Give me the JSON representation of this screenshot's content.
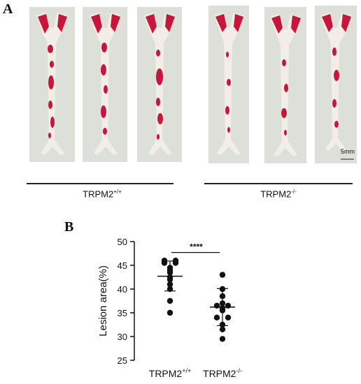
{
  "panel_a": {
    "letter": "A",
    "groups": [
      {
        "label_main": "TRPM2",
        "label_sup": "+/+"
      },
      {
        "label_main": "TRPM2",
        "label_sup": "-/-"
      }
    ],
    "scale_bar": "5mm"
  },
  "panel_b": {
    "letter": "B"
  },
  "chart_data": {
    "type": "scatter",
    "ylabel": "Lesion area(%)",
    "ylim": [
      25,
      50
    ],
    "yticks": [
      25,
      30,
      35,
      40,
      45,
      50
    ],
    "categories": [
      {
        "main": "TRPM2",
        "sup": "+/+"
      },
      {
        "main": "TRPM2",
        "sup": "-/-"
      }
    ],
    "significance": "****",
    "series": [
      {
        "values": [
          46,
          46,
          45.5,
          45.5,
          44.5,
          44,
          43.5,
          42.5,
          42,
          41,
          40,
          37.5,
          35
        ],
        "mean": 42.7,
        "sd_low": 39.6,
        "sd_high": 45.9
      },
      {
        "values": [
          43,
          40,
          38.5,
          37,
          36.5,
          36.5,
          36,
          35.5,
          34,
          34,
          32.5,
          31.5,
          29.5
        ],
        "mean": 36.2,
        "sd_low": 32.3,
        "sd_high": 40.1
      }
    ]
  }
}
